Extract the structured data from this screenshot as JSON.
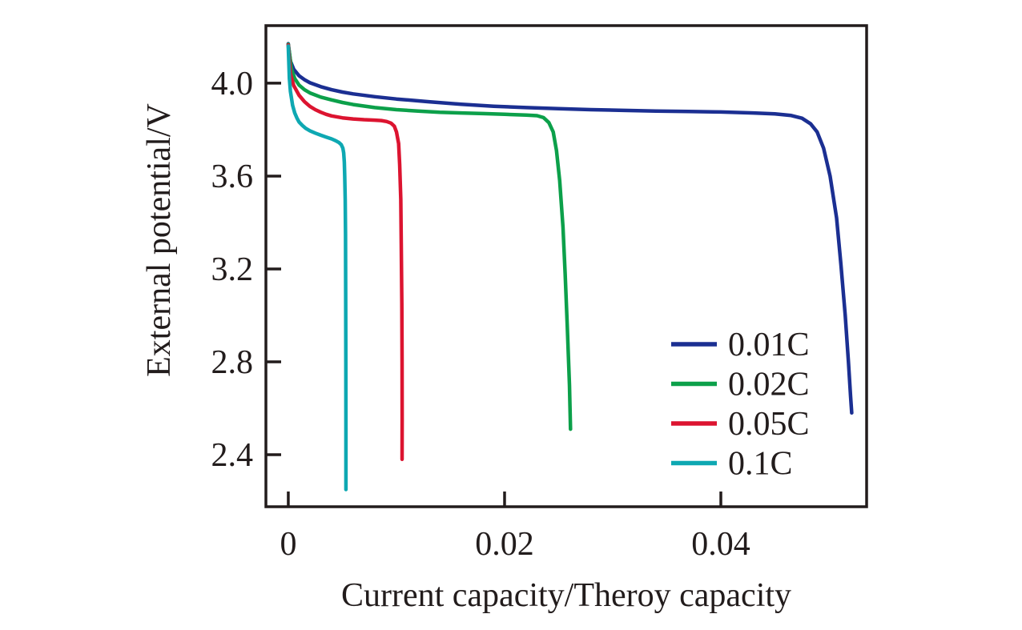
{
  "chart_data": {
    "type": "line",
    "title": "",
    "xlabel": "Current capacity/Theroy capacity",
    "ylabel": "External potential/V",
    "xlim": [
      -0.00207,
      0.05348
    ],
    "ylim": [
      2.176,
      4.248
    ],
    "grid": false,
    "legend_position": "inside lower right",
    "axis_color": "#221c1c",
    "background_color": "#ffffff",
    "xticks": {
      "values": [
        0,
        0.02,
        0.04
      ],
      "labels": [
        "0",
        "0.02",
        "0.04"
      ]
    },
    "yticks": {
      "values": [
        4.0,
        3.6,
        3.2,
        2.8,
        2.4
      ],
      "labels": [
        "4.0",
        "3.6",
        "3.2",
        "2.8",
        "2.4"
      ]
    },
    "series": [
      {
        "name": "0.01C",
        "color": "#1b2f92",
        "points": [
          [
            0,
            4.17
          ],
          [
            0.0002,
            4.095
          ],
          [
            0.0005,
            4.06
          ],
          [
            0.001,
            4.032
          ],
          [
            0.0015,
            4.015
          ],
          [
            0.002,
            4.002
          ],
          [
            0.003,
            3.985
          ],
          [
            0.004,
            3.972
          ],
          [
            0.005,
            3.962
          ],
          [
            0.006,
            3.954
          ],
          [
            0.008,
            3.942
          ],
          [
            0.01,
            3.932
          ],
          [
            0.013,
            3.92
          ],
          [
            0.016,
            3.909
          ],
          [
            0.019,
            3.901
          ],
          [
            0.022,
            3.895
          ],
          [
            0.025,
            3.89
          ],
          [
            0.028,
            3.886
          ],
          [
            0.031,
            3.883
          ],
          [
            0.034,
            3.88
          ],
          [
            0.037,
            3.878
          ],
          [
            0.04,
            3.876
          ],
          [
            0.043,
            3.872
          ],
          [
            0.045,
            3.868
          ],
          [
            0.0465,
            3.861
          ],
          [
            0.0475,
            3.849
          ],
          [
            0.0483,
            3.825
          ],
          [
            0.0489,
            3.79
          ],
          [
            0.0495,
            3.72
          ],
          [
            0.0501,
            3.6
          ],
          [
            0.0507,
            3.42
          ],
          [
            0.0511,
            3.22
          ],
          [
            0.0515,
            3.0
          ],
          [
            0.0518,
            2.8
          ],
          [
            0.052,
            2.65
          ],
          [
            0.0521,
            2.58
          ]
        ]
      },
      {
        "name": "0.02C",
        "color": "#0ca04a",
        "points": [
          [
            0,
            4.168
          ],
          [
            0.0003,
            4.06
          ],
          [
            0.0006,
            4.02
          ],
          [
            0.001,
            3.992
          ],
          [
            0.0015,
            3.972
          ],
          [
            0.002,
            3.958
          ],
          [
            0.003,
            3.94
          ],
          [
            0.004,
            3.928
          ],
          [
            0.005,
            3.917
          ],
          [
            0.006,
            3.908
          ],
          [
            0.008,
            3.895
          ],
          [
            0.01,
            3.886
          ],
          [
            0.012,
            3.88
          ],
          [
            0.014,
            3.875
          ],
          [
            0.016,
            3.872
          ],
          [
            0.018,
            3.869
          ],
          [
            0.02,
            3.866
          ],
          [
            0.022,
            3.863
          ],
          [
            0.023,
            3.86
          ],
          [
            0.0236,
            3.852
          ],
          [
            0.0241,
            3.83
          ],
          [
            0.0245,
            3.79
          ],
          [
            0.0248,
            3.71
          ],
          [
            0.0251,
            3.58
          ],
          [
            0.0254,
            3.38
          ],
          [
            0.0256,
            3.18
          ],
          [
            0.0258,
            2.95
          ],
          [
            0.026,
            2.7
          ],
          [
            0.0261,
            2.51
          ]
        ]
      },
      {
        "name": "0.05C",
        "color": "#dc1430",
        "points": [
          [
            0,
            4.165
          ],
          [
            0.0002,
            4.04
          ],
          [
            0.0005,
            3.99
          ],
          [
            0.001,
            3.948
          ],
          [
            0.0015,
            3.92
          ],
          [
            0.002,
            3.9
          ],
          [
            0.0025,
            3.886
          ],
          [
            0.003,
            3.875
          ],
          [
            0.0035,
            3.866
          ],
          [
            0.004,
            3.859
          ],
          [
            0.005,
            3.851
          ],
          [
            0.006,
            3.846
          ],
          [
            0.007,
            3.843
          ],
          [
            0.008,
            3.841
          ],
          [
            0.0086,
            3.839
          ],
          [
            0.0091,
            3.835
          ],
          [
            0.0095,
            3.828
          ],
          [
            0.0098,
            3.815
          ],
          [
            0.01,
            3.79
          ],
          [
            0.0102,
            3.74
          ],
          [
            0.0103,
            3.65
          ],
          [
            0.0104,
            3.5
          ],
          [
            0.01045,
            3.3
          ],
          [
            0.0105,
            3.05
          ],
          [
            0.01052,
            2.8
          ],
          [
            0.01053,
            2.55
          ],
          [
            0.01052,
            2.38
          ]
        ]
      },
      {
        "name": "0.1C",
        "color": "#0ea8b2",
        "points": [
          [
            0,
            4.16
          ],
          [
            0.0001,
            4.02
          ],
          [
            0.0002,
            3.965
          ],
          [
            0.0004,
            3.905
          ],
          [
            0.0006,
            3.872
          ],
          [
            0.0008,
            3.85
          ],
          [
            0.001,
            3.833
          ],
          [
            0.0013,
            3.818
          ],
          [
            0.0016,
            3.806
          ],
          [
            0.002,
            3.795
          ],
          [
            0.0025,
            3.785
          ],
          [
            0.003,
            3.776
          ],
          [
            0.0035,
            3.768
          ],
          [
            0.004,
            3.76
          ],
          [
            0.0044,
            3.752
          ],
          [
            0.0047,
            3.744
          ],
          [
            0.0049,
            3.735
          ],
          [
            0.00505,
            3.72
          ],
          [
            0.00512,
            3.7
          ],
          [
            0.00518,
            3.66
          ],
          [
            0.00522,
            3.6
          ],
          [
            0.00526,
            3.5
          ],
          [
            0.00529,
            3.35
          ],
          [
            0.00531,
            3.1
          ],
          [
            0.00532,
            2.8
          ],
          [
            0.00533,
            2.5
          ],
          [
            0.00533,
            2.25
          ]
        ]
      }
    ]
  }
}
